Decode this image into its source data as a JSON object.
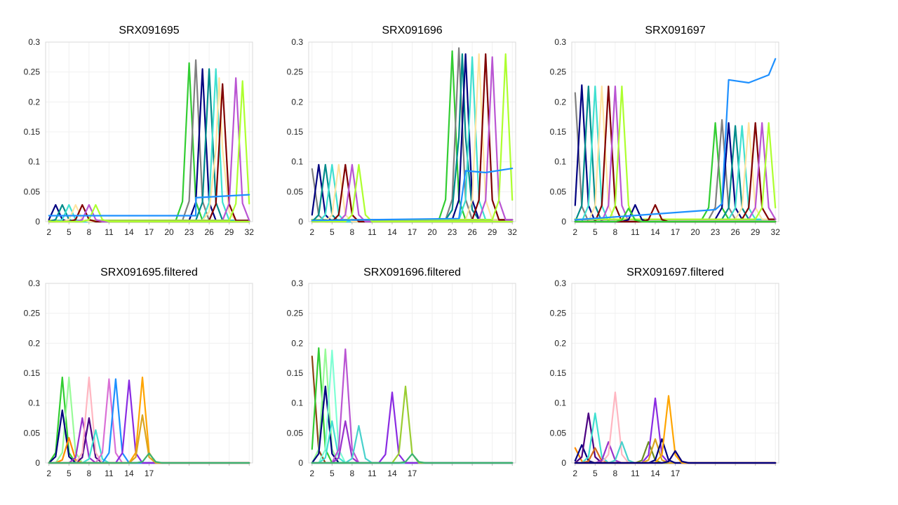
{
  "chart_data": [
    {
      "type": "line",
      "title": "SRX091695",
      "xlabel": "",
      "ylabel": "",
      "x": [
        2,
        3,
        4,
        5,
        6,
        7,
        8,
        9,
        10,
        11,
        12,
        13,
        14,
        15,
        16,
        17,
        18,
        19,
        20,
        21,
        22,
        23,
        24,
        25,
        26,
        27,
        28,
        29,
        30,
        31,
        32
      ],
      "xticks": [
        2,
        5,
        8,
        11,
        14,
        17,
        20,
        23,
        26,
        29,
        32
      ],
      "xlim": [
        1.5,
        32.5
      ],
      "yticks": [
        "0",
        "0.05",
        "0.1",
        "0.15",
        "0.2",
        "0.25",
        "0.3"
      ],
      "ylim": [
        0,
        0.3
      ],
      "grid": true,
      "series": [
        {
          "color": "#32cd32",
          "peak_x": 23,
          "peak_y": 0.265,
          "base": 0.002
        },
        {
          "color": "#808080",
          "peak_x": 24,
          "peak_y": 0.27,
          "base": 0.002
        },
        {
          "color": "#000080",
          "peak_x": 25,
          "peak_y": 0.255,
          "base": 0.002
        },
        {
          "color": "#008b8b",
          "peak_x": 26,
          "peak_y": 0.255,
          "base": 0.002
        },
        {
          "color": "#40e0d0",
          "peak_x": 27,
          "peak_y": 0.255,
          "base": 0.002
        },
        {
          "color": "#ffe4a0",
          "peak_x": 27.5,
          "peak_y": 0.24,
          "base": 0.002
        },
        {
          "color": "#800000",
          "peak_x": 28,
          "peak_y": 0.23,
          "base": 0.002
        },
        {
          "color": "#ba55d3",
          "peak_x": 30,
          "peak_y": 0.24,
          "base": 0.002
        },
        {
          "color": "#adff2f",
          "peak_x": 31,
          "peak_y": 0.235,
          "base": 0.002
        },
        {
          "color": "#000080",
          "peak_x": 3,
          "peak_y": 0.028,
          "base": 0.0
        },
        {
          "color": "#008b8b",
          "peak_x": 4,
          "peak_y": 0.028,
          "base": 0.0
        },
        {
          "color": "#40e0d0",
          "peak_x": 5,
          "peak_y": 0.028,
          "base": 0.0
        },
        {
          "color": "#ffe4a0",
          "peak_x": 6,
          "peak_y": 0.028,
          "base": 0.0
        },
        {
          "color": "#800000",
          "peak_x": 7,
          "peak_y": 0.028,
          "base": 0.0
        },
        {
          "color": "#ba55d3",
          "peak_x": 8,
          "peak_y": 0.028,
          "base": 0.0
        },
        {
          "color": "#adff2f",
          "peak_x": 9,
          "peak_y": 0.028,
          "base": 0.0
        }
      ],
      "flat_series": [
        {
          "color": "#1e90ff",
          "points": [
            [
              2,
              0.01
            ],
            [
              24,
              0.01
            ],
            [
              24,
              0.04
            ],
            [
              32,
              0.045
            ]
          ]
        }
      ]
    },
    {
      "type": "line",
      "title": "SRX091696",
      "xlabel": "",
      "ylabel": "",
      "x": [
        2,
        3,
        4,
        5,
        6,
        7,
        8,
        9,
        10,
        11,
        12,
        13,
        14,
        15,
        16,
        17,
        18,
        19,
        20,
        21,
        22,
        23,
        24,
        25,
        26,
        27,
        28,
        29,
        30,
        31,
        32
      ],
      "xticks": [
        2,
        5,
        8,
        11,
        14,
        17,
        20,
        23,
        26,
        29,
        32
      ],
      "xlim": [
        1.5,
        32.5
      ],
      "yticks": [
        "0",
        "0.05",
        "0.1",
        "0.15",
        "0.2",
        "0.25",
        "0.3"
      ],
      "ylim": [
        0,
        0.3
      ],
      "grid": true,
      "series": [
        {
          "color": "#32cd32",
          "peak_x": 23,
          "peak_y": 0.285,
          "base": 0.003
        },
        {
          "color": "#808080",
          "peak_x": 24,
          "peak_y": 0.29,
          "base": 0.003
        },
        {
          "color": "#008b8b",
          "peak_x": 24.5,
          "peak_y": 0.28,
          "base": 0.003
        },
        {
          "color": "#000080",
          "peak_x": 25,
          "peak_y": 0.28,
          "base": 0.003
        },
        {
          "color": "#40e0d0",
          "peak_x": 26,
          "peak_y": 0.275,
          "base": 0.003
        },
        {
          "color": "#ffe4a0",
          "peak_x": 27,
          "peak_y": 0.28,
          "base": 0.003
        },
        {
          "color": "#800000",
          "peak_x": 28,
          "peak_y": 0.28,
          "base": 0.003
        },
        {
          "color": "#ba55d3",
          "peak_x": 29,
          "peak_y": 0.275,
          "base": 0.003
        },
        {
          "color": "#adff2f",
          "peak_x": 31,
          "peak_y": 0.28,
          "base": 0.003
        },
        {
          "color": "#808080",
          "peak_x": 2,
          "peak_y": 0.088,
          "base": 0.0
        },
        {
          "color": "#000080",
          "peak_x": 3,
          "peak_y": 0.095,
          "base": 0.0
        },
        {
          "color": "#008b8b",
          "peak_x": 4,
          "peak_y": 0.095,
          "base": 0.0
        },
        {
          "color": "#40e0d0",
          "peak_x": 5,
          "peak_y": 0.095,
          "base": 0.0
        },
        {
          "color": "#ffe4a0",
          "peak_x": 6,
          "peak_y": 0.095,
          "base": 0.0
        },
        {
          "color": "#800000",
          "peak_x": 7,
          "peak_y": 0.095,
          "base": 0.0
        },
        {
          "color": "#ba55d3",
          "peak_x": 8,
          "peak_y": 0.095,
          "base": 0.0
        },
        {
          "color": "#adff2f",
          "peak_x": 9,
          "peak_y": 0.095,
          "base": 0.0
        }
      ],
      "flat_series": [
        {
          "color": "#1e90ff",
          "points": [
            [
              2,
              0.002
            ],
            [
              24,
              0.005
            ],
            [
              25,
              0.085
            ],
            [
              28,
              0.082
            ],
            [
              32,
              0.089
            ]
          ]
        }
      ]
    },
    {
      "type": "line",
      "title": "SRX091697",
      "xlabel": "",
      "ylabel": "",
      "x": [
        2,
        3,
        4,
        5,
        6,
        7,
        8,
        9,
        10,
        11,
        12,
        13,
        14,
        15,
        16,
        17,
        18,
        19,
        20,
        21,
        22,
        23,
        24,
        25,
        26,
        27,
        28,
        29,
        30,
        31,
        32
      ],
      "xticks": [
        2,
        5,
        8,
        11,
        14,
        17,
        20,
        23,
        26,
        29,
        32
      ],
      "xlim": [
        1.5,
        32.5
      ],
      "yticks": [
        "0",
        "0.05",
        "0.1",
        "0.15",
        "0.2",
        "0.25",
        "0.3"
      ],
      "ylim": [
        0,
        0.3
      ],
      "grid": true,
      "series": [
        {
          "color": "#808080",
          "peak_x": 2,
          "peak_y": 0.215,
          "base": 0.0
        },
        {
          "color": "#000080",
          "peak_x": 3,
          "peak_y": 0.228,
          "base": 0.0
        },
        {
          "color": "#008b8b",
          "peak_x": 4,
          "peak_y": 0.226,
          "base": 0.0
        },
        {
          "color": "#40e0d0",
          "peak_x": 5,
          "peak_y": 0.226,
          "base": 0.0
        },
        {
          "color": "#ffe4a0",
          "peak_x": 6,
          "peak_y": 0.226,
          "base": 0.0
        },
        {
          "color": "#800000",
          "peak_x": 7,
          "peak_y": 0.226,
          "base": 0.0
        },
        {
          "color": "#ba55d3",
          "peak_x": 8,
          "peak_y": 0.226,
          "base": 0.0
        },
        {
          "color": "#adff2f",
          "peak_x": 9,
          "peak_y": 0.226,
          "base": 0.0
        },
        {
          "color": "#32cd32",
          "peak_x": 23,
          "peak_y": 0.165,
          "base": 0.004
        },
        {
          "color": "#808080",
          "peak_x": 24,
          "peak_y": 0.17,
          "base": 0.004
        },
        {
          "color": "#000080",
          "peak_x": 25,
          "peak_y": 0.165,
          "base": 0.004
        },
        {
          "color": "#008b8b",
          "peak_x": 26,
          "peak_y": 0.16,
          "base": 0.004
        },
        {
          "color": "#40e0d0",
          "peak_x": 27,
          "peak_y": 0.16,
          "base": 0.004
        },
        {
          "color": "#ffe4a0",
          "peak_x": 28,
          "peak_y": 0.165,
          "base": 0.004
        },
        {
          "color": "#800000",
          "peak_x": 29,
          "peak_y": 0.165,
          "base": 0.004
        },
        {
          "color": "#ba55d3",
          "peak_x": 30,
          "peak_y": 0.165,
          "base": 0.004
        },
        {
          "color": "#adff2f",
          "peak_x": 31,
          "peak_y": 0.165,
          "base": 0.004
        },
        {
          "color": "#000080",
          "peak_x": 11,
          "peak_y": 0.028,
          "base": 0.0
        },
        {
          "color": "#800000",
          "peak_x": 14,
          "peak_y": 0.028,
          "base": 0.0
        },
        {
          "color": "#32cd32",
          "peak_x": 10,
          "peak_y": 0.022,
          "base": 0.0
        }
      ],
      "flat_series": [
        {
          "color": "#1e90ff",
          "points": [
            [
              2,
              0.003
            ],
            [
              23,
              0.02
            ],
            [
              24,
              0.03
            ],
            [
              25,
              0.237
            ],
            [
              28,
              0.232
            ],
            [
              31,
              0.245
            ],
            [
              32,
              0.272
            ]
          ]
        }
      ]
    },
    {
      "type": "line",
      "title": "SRX091695.filtered",
      "xlabel": "",
      "ylabel": "",
      "x": [
        2,
        3,
        4,
        5,
        6,
        7,
        8,
        9,
        10,
        11,
        12,
        13,
        14,
        15,
        16,
        17,
        18,
        19,
        20,
        21,
        22,
        23,
        24,
        25,
        26,
        27,
        28,
        29,
        30,
        31,
        32
      ],
      "xticks": [
        2,
        5,
        8,
        11,
        14,
        17
      ],
      "xlim": [
        1.5,
        32.5
      ],
      "yticks": [
        "0",
        "0.05",
        "0.1",
        "0.15",
        "0.2",
        "0.25",
        "0.3"
      ],
      "ylim": [
        0,
        0.3
      ],
      "grid": true,
      "series": [
        {
          "color": "#32cd32",
          "peak_x": 4,
          "peak_y": 0.143,
          "base": 0.0
        },
        {
          "color": "#98fb98",
          "peak_x": 5,
          "peak_y": 0.143,
          "base": 0.0
        },
        {
          "color": "#000080",
          "peak_x": 4,
          "peak_y": 0.088,
          "base": 0.0
        },
        {
          "color": "#ff8c00",
          "peak_x": 5,
          "peak_y": 0.042,
          "base": 0.0
        },
        {
          "color": "#9932cc",
          "peak_x": 7,
          "peak_y": 0.075,
          "base": 0.0
        },
        {
          "color": "#4b0082",
          "peak_x": 8,
          "peak_y": 0.075,
          "base": 0.0
        },
        {
          "color": "#ffb6c1",
          "peak_x": 8,
          "peak_y": 0.143,
          "base": 0.0
        },
        {
          "color": "#40e0d0",
          "peak_x": 9,
          "peak_y": 0.055,
          "base": 0.0
        },
        {
          "color": "#da70d6",
          "peak_x": 11,
          "peak_y": 0.14,
          "base": 0.0
        },
        {
          "color": "#1e90ff",
          "peak_x": 12,
          "peak_y": 0.14,
          "base": 0.0
        },
        {
          "color": "#8a2be2",
          "peak_x": 14,
          "peak_y": 0.138,
          "base": 0.0
        },
        {
          "color": "#ffa500",
          "peak_x": 16,
          "peak_y": 0.143,
          "base": 0.0
        },
        {
          "color": "#daa520",
          "peak_x": 16,
          "peak_y": 0.08,
          "base": 0.0
        },
        {
          "color": "#3cb371",
          "peak_x": 17,
          "peak_y": 0.016,
          "base": 0.0
        }
      ],
      "flat_series": []
    },
    {
      "type": "line",
      "title": "SRX091696.filtered",
      "xlabel": "",
      "ylabel": "",
      "x": [
        2,
        3,
        4,
        5,
        6,
        7,
        8,
        9,
        10,
        11,
        12,
        13,
        14,
        15,
        16,
        17,
        18,
        19,
        20,
        21,
        22,
        23,
        24,
        25,
        26,
        27,
        28,
        29,
        30,
        31,
        32
      ],
      "xticks": [
        2,
        5,
        8,
        11,
        14,
        17
      ],
      "xlim": [
        1.5,
        32.5
      ],
      "yticks": [
        "0",
        "0.05",
        "0.1",
        "0.15",
        "0.2",
        "0.25",
        "0.3"
      ],
      "ylim": [
        0,
        0.3
      ],
      "grid": true,
      "series": [
        {
          "color": "#8b4513",
          "peak_x": 2,
          "peak_y": 0.178,
          "base": 0.0
        },
        {
          "color": "#32cd32",
          "peak_x": 3,
          "peak_y": 0.192,
          "base": 0.0
        },
        {
          "color": "#98fb98",
          "peak_x": 4,
          "peak_y": 0.19,
          "base": 0.0
        },
        {
          "color": "#000080",
          "peak_x": 4,
          "peak_y": 0.128,
          "base": 0.0
        },
        {
          "color": "#7fffd4",
          "peak_x": 5,
          "peak_y": 0.188,
          "base": 0.0
        },
        {
          "color": "#40e0d0",
          "peak_x": 5,
          "peak_y": 0.07,
          "base": 0.0
        },
        {
          "color": "#ba55d3",
          "peak_x": 7,
          "peak_y": 0.19,
          "base": 0.0
        },
        {
          "color": "#9932cc",
          "peak_x": 7,
          "peak_y": 0.07,
          "base": 0.0
        },
        {
          "color": "#48d1cc",
          "peak_x": 9,
          "peak_y": 0.062,
          "base": 0.0
        },
        {
          "color": "#8a2be2",
          "peak_x": 14,
          "peak_y": 0.118,
          "base": 0.0
        },
        {
          "color": "#9acd32",
          "peak_x": 16,
          "peak_y": 0.128,
          "base": 0.0
        },
        {
          "color": "#3cb371",
          "peak_x": 17,
          "peak_y": 0.015,
          "base": 0.0
        }
      ],
      "flat_series": []
    },
    {
      "type": "line",
      "title": "SRX091697.filtered",
      "xlabel": "",
      "ylabel": "",
      "x": [
        2,
        3,
        4,
        5,
        6,
        7,
        8,
        9,
        10,
        11,
        12,
        13,
        14,
        15,
        16,
        17,
        18,
        19,
        20,
        21,
        22,
        23,
        24,
        25,
        26,
        27,
        28,
        29,
        30,
        31,
        32
      ],
      "xticks": [
        2,
        5,
        8,
        11,
        14,
        17
      ],
      "xlim": [
        1.5,
        32.5
      ],
      "yticks": [
        "0",
        "0.05",
        "0.1",
        "0.15",
        "0.2",
        "0.25",
        "0.3"
      ],
      "ylim": [
        0,
        0.3
      ],
      "grid": true,
      "series": [
        {
          "color": "#ff8c00",
          "peak_x": 2,
          "peak_y": 0.025,
          "base": 0.0
        },
        {
          "color": "#000080",
          "peak_x": 3,
          "peak_y": 0.03,
          "base": 0.0
        },
        {
          "color": "#4b0082",
          "peak_x": 4,
          "peak_y": 0.083,
          "base": 0.0
        },
        {
          "color": "#40e0d0",
          "peak_x": 5,
          "peak_y": 0.083,
          "base": 0.0
        },
        {
          "color": "#d2691e",
          "peak_x": 5,
          "peak_y": 0.025,
          "base": 0.0
        },
        {
          "color": "#9932cc",
          "peak_x": 7,
          "peak_y": 0.035,
          "base": 0.0
        },
        {
          "color": "#ffb6c1",
          "peak_x": 8,
          "peak_y": 0.118,
          "base": 0.0
        },
        {
          "color": "#48d1cc",
          "peak_x": 9,
          "peak_y": 0.035,
          "base": 0.0
        },
        {
          "color": "#6b8e23",
          "peak_x": 13,
          "peak_y": 0.035,
          "base": 0.0
        },
        {
          "color": "#8a2be2",
          "peak_x": 14,
          "peak_y": 0.108,
          "base": 0.0
        },
        {
          "color": "#daa520",
          "peak_x": 14,
          "peak_y": 0.04,
          "base": 0.0
        },
        {
          "color": "#000080",
          "peak_x": 15,
          "peak_y": 0.04,
          "base": 0.0
        },
        {
          "color": "#ffa500",
          "peak_x": 16,
          "peak_y": 0.112,
          "base": 0.0
        },
        {
          "color": "#ff6347",
          "peak_x": 17,
          "peak_y": 0.02,
          "base": 0.0
        },
        {
          "color": "#000080",
          "peak_x": 17,
          "peak_y": 0.02,
          "base": 0.0
        }
      ],
      "flat_series": []
    }
  ]
}
